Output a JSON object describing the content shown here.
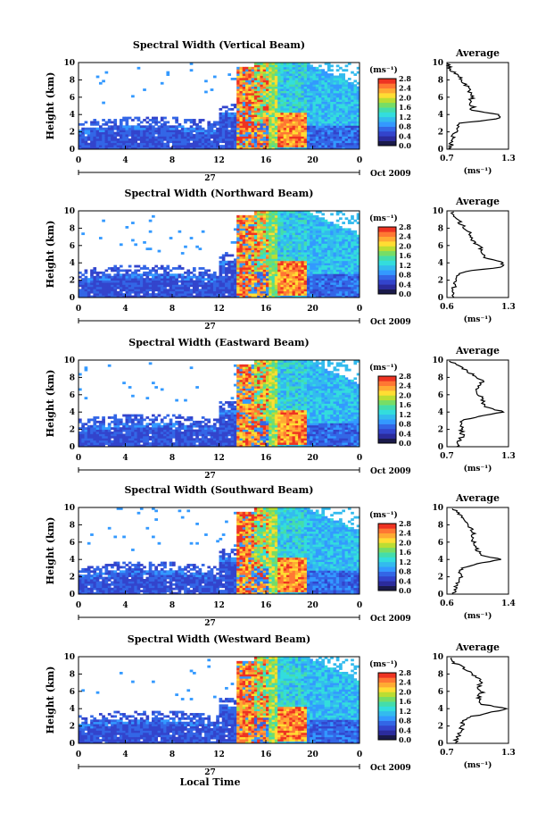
{
  "figure": {
    "xlabel_bottom": "Local Time",
    "date_label": "Oct 2009",
    "day_label": "27",
    "colorbar_unit": "(ms⁻¹)",
    "average_title": "Average",
    "average_unit": "(ms⁻¹)"
  },
  "colors": {
    "colormap": [
      "#1a1a4a",
      "#2b2b9c",
      "#3344cc",
      "#3366e6",
      "#3399ff",
      "#33bbee",
      "#33dddd",
      "#44ddaa",
      "#77dd66",
      "#bbdd33",
      "#ffdd33",
      "#ffaa33",
      "#ff7733",
      "#ee3322"
    ]
  },
  "chart_data": [
    {
      "type": "heatmap",
      "title": "Spectral Width (Vertical Beam)",
      "ylabel": "Height (km)",
      "xlim": [
        0,
        24
      ],
      "ylim": [
        0,
        10
      ],
      "xticks": [
        "0",
        "4",
        "8",
        "12",
        "16",
        "20",
        "0"
      ],
      "yticks": [
        "0",
        "2",
        "4",
        "6",
        "8",
        "10"
      ],
      "colorbar_ticks": [
        "0.0",
        "0.4",
        "0.8",
        "1.2",
        "1.6",
        "2.0",
        "2.4",
        "2.8"
      ],
      "clim": [
        0,
        2.8
      ],
      "average": {
        "xticks": [
          "0.7",
          "1.3"
        ],
        "xlim": [
          0.7,
          1.3
        ],
        "yticks": [
          "0",
          "2",
          "4",
          "6",
          "8",
          "10"
        ],
        "profile": [
          [
            0,
            0.74
          ],
          [
            0.5,
            0.74
          ],
          [
            1,
            0.74
          ],
          [
            1.5,
            0.76
          ],
          [
            2,
            0.78
          ],
          [
            2.5,
            0.8
          ],
          [
            3,
            0.84
          ],
          [
            3.5,
            1.2
          ],
          [
            4,
            1.22
          ],
          [
            4.5,
            0.95
          ],
          [
            5,
            0.95
          ],
          [
            5.5,
            0.93
          ],
          [
            6,
            0.95
          ],
          [
            6.5,
            0.92
          ],
          [
            7,
            0.9
          ],
          [
            7.5,
            0.88
          ],
          [
            8,
            0.84
          ],
          [
            8.5,
            0.8
          ],
          [
            9,
            0.76
          ],
          [
            9.5,
            0.72
          ],
          [
            10,
            0.7
          ]
        ]
      }
    },
    {
      "type": "heatmap",
      "title": "Spectral Width (Northward Beam)",
      "ylabel": "Height (km)",
      "xlim": [
        0,
        24
      ],
      "ylim": [
        0,
        10
      ],
      "xticks": [
        "0",
        "4",
        "8",
        "12",
        "16",
        "20",
        "0"
      ],
      "yticks": [
        "0",
        "2",
        "4",
        "6",
        "8",
        "10"
      ],
      "colorbar_ticks": [
        "0.0",
        "0.4",
        "0.8",
        "1.2",
        "1.6",
        "2.0",
        "2.4",
        "2.8"
      ],
      "clim": [
        0,
        2.8
      ],
      "average": {
        "xticks": [
          "0.6",
          "1.3"
        ],
        "xlim": [
          0.6,
          1.3
        ],
        "yticks": [
          "0",
          "2",
          "4",
          "6",
          "8",
          "10"
        ],
        "profile": [
          [
            0,
            0.66
          ],
          [
            0.5,
            0.68
          ],
          [
            1,
            0.68
          ],
          [
            1.5,
            0.68
          ],
          [
            2,
            0.7
          ],
          [
            2.5,
            0.72
          ],
          [
            3,
            0.8
          ],
          [
            3.5,
            1.2
          ],
          [
            4,
            1.25
          ],
          [
            4.5,
            1.05
          ],
          [
            5,
            1.02
          ],
          [
            5.5,
            1.0
          ],
          [
            6,
            0.96
          ],
          [
            6.5,
            0.9
          ],
          [
            7,
            0.88
          ],
          [
            7.5,
            0.85
          ],
          [
            8,
            0.8
          ],
          [
            8.5,
            0.76
          ],
          [
            9,
            0.72
          ],
          [
            9.5,
            0.68
          ],
          [
            10,
            0.66
          ]
        ]
      }
    },
    {
      "type": "heatmap",
      "title": "Spectral Width (Eastward Beam)",
      "ylabel": "Height (km)",
      "xlim": [
        0,
        24
      ],
      "ylim": [
        0,
        10
      ],
      "xticks": [
        "0",
        "4",
        "8",
        "12",
        "16",
        "20",
        "0"
      ],
      "yticks": [
        "0",
        "2",
        "4",
        "6",
        "8",
        "10"
      ],
      "colorbar_ticks": [
        "0.0",
        "0.4",
        "0.8",
        "1.2",
        "1.6",
        "2.0",
        "2.4",
        "2.8"
      ],
      "clim": [
        0,
        2.8
      ],
      "average": {
        "xticks": [
          "0.7",
          "1.3"
        ],
        "xlim": [
          0.7,
          1.3
        ],
        "yticks": [
          "0",
          "2",
          "4",
          "6",
          "8",
          "10"
        ],
        "profile": [
          [
            0,
            0.8
          ],
          [
            0.5,
            0.82
          ],
          [
            1,
            0.84
          ],
          [
            1.5,
            0.85
          ],
          [
            2,
            0.84
          ],
          [
            2.5,
            0.86
          ],
          [
            3,
            0.84
          ],
          [
            3.5,
            1.0
          ],
          [
            4,
            1.25
          ],
          [
            4.5,
            1.1
          ],
          [
            5,
            1.05
          ],
          [
            5.5,
            1.05
          ],
          [
            6,
            1.02
          ],
          [
            6.5,
            0.98
          ],
          [
            7,
            1.0
          ],
          [
            7.5,
            1.05
          ],
          [
            8,
            1.0
          ],
          [
            8.5,
            0.92
          ],
          [
            9,
            0.85
          ],
          [
            9.5,
            0.78
          ],
          [
            10,
            0.72
          ]
        ]
      }
    },
    {
      "type": "heatmap",
      "title": "Spectral Width (Southward Beam)",
      "ylabel": "Height (km)",
      "xlim": [
        0,
        24
      ],
      "ylim": [
        0,
        10
      ],
      "xticks": [
        "0",
        "4",
        "8",
        "12",
        "16",
        "20",
        "0"
      ],
      "yticks": [
        "0",
        "2",
        "4",
        "6",
        "8",
        "10"
      ],
      "colorbar_ticks": [
        "0.0",
        "0.4",
        "0.8",
        "1.2",
        "1.6",
        "2.0",
        "2.4",
        "2.8"
      ],
      "clim": [
        0,
        2.8
      ],
      "average": {
        "xticks": [
          "0.6",
          "1.4"
        ],
        "xlim": [
          0.6,
          1.4
        ],
        "yticks": [
          "0",
          "2",
          "4",
          "6",
          "8",
          "10"
        ],
        "profile": [
          [
            0,
            0.68
          ],
          [
            0.5,
            0.7
          ],
          [
            1,
            0.72
          ],
          [
            1.5,
            0.74
          ],
          [
            2,
            0.78
          ],
          [
            2.5,
            0.76
          ],
          [
            3,
            0.8
          ],
          [
            3.5,
            1.0
          ],
          [
            4,
            1.3
          ],
          [
            4.5,
            1.05
          ],
          [
            5,
            1.0
          ],
          [
            5.5,
            0.98
          ],
          [
            6,
            0.95
          ],
          [
            6.5,
            0.92
          ],
          [
            7,
            0.95
          ],
          [
            7.5,
            0.92
          ],
          [
            8,
            0.88
          ],
          [
            8.5,
            0.85
          ],
          [
            9,
            0.8
          ],
          [
            9.5,
            0.72
          ],
          [
            10,
            0.68
          ]
        ]
      }
    },
    {
      "type": "heatmap",
      "title": "Spectral Width (Westward Beam)",
      "ylabel": "Height (km)",
      "xlabel": "Local Time",
      "xlim": [
        0,
        24
      ],
      "ylim": [
        0,
        10
      ],
      "xticks": [
        "0",
        "4",
        "8",
        "12",
        "16",
        "20",
        "0"
      ],
      "yticks": [
        "0",
        "2",
        "4",
        "6",
        "8",
        "10"
      ],
      "colorbar_ticks": [
        "0.0",
        "0.4",
        "0.8",
        "1.2",
        "1.6",
        "2.0",
        "2.4",
        "2.8"
      ],
      "clim": [
        0,
        2.8
      ],
      "average": {
        "xticks": [
          "0.7",
          "1.3"
        ],
        "xlim": [
          0.7,
          1.3
        ],
        "yticks": [
          "0",
          "2",
          "4",
          "6",
          "8",
          "10"
        ],
        "profile": [
          [
            0,
            0.78
          ],
          [
            0.5,
            0.8
          ],
          [
            1,
            0.82
          ],
          [
            1.5,
            0.84
          ],
          [
            2,
            0.85
          ],
          [
            2.5,
            0.86
          ],
          [
            3,
            0.9
          ],
          [
            3.5,
            1.1
          ],
          [
            4,
            1.28
          ],
          [
            4.5,
            1.05
          ],
          [
            5,
            1.0
          ],
          [
            5.5,
            1.02
          ],
          [
            6,
            1.05
          ],
          [
            6.5,
            1.0
          ],
          [
            7,
            1.05
          ],
          [
            7.5,
            1.0
          ],
          [
            8,
            0.95
          ],
          [
            8.5,
            0.9
          ],
          [
            9,
            0.82
          ],
          [
            9.5,
            0.74
          ],
          [
            10,
            0.72
          ]
        ]
      }
    }
  ]
}
